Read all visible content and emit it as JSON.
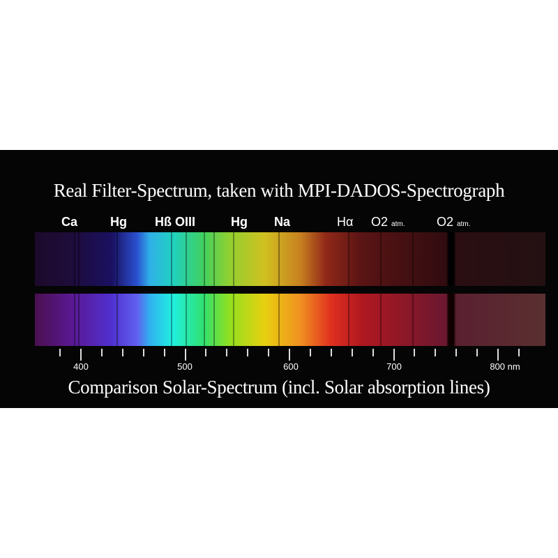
{
  "title": "Real Filter-Spectrum, taken with MPI-DADOS-Spectrograph",
  "caption": "Comparison Solar-Spectrum (incl. Solar absorption lines)",
  "line_labels": [
    {
      "name": "Ca",
      "sub": ""
    },
    {
      "name": "Hg",
      "sub": ""
    },
    {
      "name": "Hß OIII",
      "sub": ""
    },
    {
      "name": "Hg",
      "sub": ""
    },
    {
      "name": "Na",
      "sub": ""
    },
    {
      "name": "Hα",
      "sub": ""
    },
    {
      "name": "O2",
      "sub": "atm."
    },
    {
      "name": "O2",
      "sub": "atm."
    }
  ],
  "axis": {
    "ticks": [
      "400",
      "500",
      "600",
      "700",
      "800 nm"
    ],
    "unit": "nm"
  }
}
